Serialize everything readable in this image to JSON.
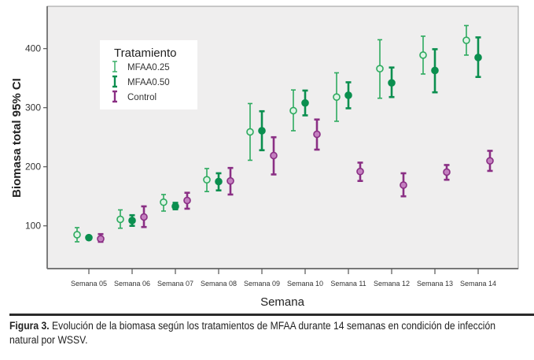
{
  "chart_data": {
    "type": "errorbar",
    "title": "",
    "xlabel": "Semana",
    "ylabel": "Biomasa total 95% CI",
    "ylim": [
      30,
      470
    ],
    "yticks": [
      100,
      200,
      300,
      400
    ],
    "grid": false,
    "categories": [
      "Semana 05",
      "Semana 06",
      "Semana 07",
      "Semana 08",
      "Semana 09",
      "Semana 10",
      "Semana 11",
      "Semana 12",
      "Semana 13",
      "Semana 14"
    ],
    "legend": {
      "title": "Tratamiento",
      "placement": "top-left"
    },
    "series": [
      {
        "name": "MFAA0.25",
        "color": "#2eaa5f",
        "marker": "open-circle",
        "mean": [
          85,
          111,
          140,
          178,
          259,
          295,
          318,
          366,
          389,
          414
        ],
        "lower": [
          73,
          96,
          125,
          158,
          211,
          261,
          277,
          316,
          357,
          389
        ],
        "upper": [
          97,
          127,
          153,
          197,
          307,
          330,
          359,
          415,
          421,
          439
        ]
      },
      {
        "name": "MFAA0.50",
        "color": "#0b8f4f",
        "marker": "filled-circle",
        "mean": [
          80,
          109,
          133,
          175,
          261,
          308,
          321,
          342,
          363,
          385
        ],
        "lower": [
          78,
          100,
          128,
          160,
          228,
          287,
          299,
          318,
          326,
          352
        ],
        "upper": [
          82,
          118,
          139,
          189,
          294,
          329,
          343,
          368,
          399,
          419
        ]
      },
      {
        "name": "Control",
        "color": "#8a2f84",
        "marker": "filled-circle-light",
        "mean": [
          78,
          115,
          143,
          176,
          219,
          255,
          192,
          169,
          191,
          210
        ],
        "lower": [
          73,
          98,
          129,
          153,
          187,
          229,
          176,
          150,
          178,
          193
        ],
        "upper": [
          86,
          133,
          156,
          198,
          250,
          280,
          207,
          189,
          203,
          227
        ]
      }
    ]
  },
  "caption": {
    "label": "Figura 3.",
    "text": " Evolución de la biomasa según los tratamientos de MFAA durante 14 semanas en condición de infección natural por WSSV."
  }
}
